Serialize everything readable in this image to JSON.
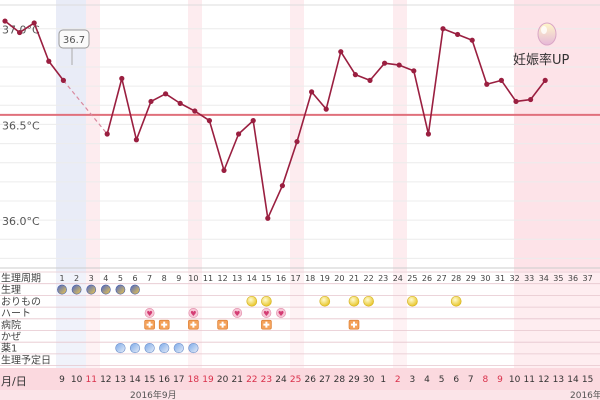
{
  "chart_data": {
    "type": "line",
    "y_ticks": [
      {
        "value": 37.0,
        "label": "37.0°C"
      },
      {
        "value": 36.5,
        "label": "36.5°C"
      },
      {
        "value": 36.0,
        "label": "36.0°C"
      }
    ],
    "ylim": [
      35.75,
      37.15
    ],
    "cover_line": 36.55,
    "tooltip": "36.7",
    "series_segments": [
      [
        [
          0,
          37.04
        ],
        [
          1,
          36.98
        ],
        [
          2,
          37.03
        ],
        [
          3,
          36.83
        ],
        [
          4,
          36.73
        ]
      ],
      [
        [
          7,
          36.45
        ],
        [
          8,
          36.74
        ],
        [
          9,
          36.42
        ],
        [
          10,
          36.62
        ],
        [
          11,
          36.66
        ],
        [
          12,
          36.61
        ],
        [
          13,
          36.57
        ],
        [
          14,
          36.52
        ],
        [
          15,
          36.26
        ],
        [
          16,
          36.45
        ],
        [
          17,
          36.52
        ],
        [
          18,
          36.01
        ],
        [
          19,
          36.18
        ],
        [
          20,
          36.41
        ],
        [
          21,
          36.67
        ],
        [
          22,
          36.58
        ],
        [
          23,
          36.88
        ],
        [
          24,
          36.76
        ],
        [
          25,
          36.73
        ],
        [
          26,
          36.82
        ],
        [
          27,
          36.81
        ],
        [
          28,
          36.78
        ],
        [
          29,
          36.45
        ],
        [
          30,
          37.0
        ],
        [
          31,
          36.97
        ],
        [
          32,
          36.94
        ],
        [
          33,
          36.71
        ],
        [
          34,
          36.73
        ],
        [
          35,
          36.62
        ],
        [
          36,
          36.63
        ],
        [
          37,
          36.73
        ]
      ]
    ],
    "interpolated_gap": [
      [
        4,
        36.73
      ],
      [
        7,
        36.45
      ]
    ],
    "badge": {
      "icon": "egg-icon",
      "label": "妊娠率UP"
    }
  },
  "rows": {
    "labels": [
      "生理周期",
      "生理",
      "おりもの",
      "ハート",
      "病院",
      "かぜ",
      "薬1",
      "生理予定日"
    ],
    "cycle_days": [
      "1",
      "2",
      "3",
      "4",
      "5",
      "6",
      "7",
      "8",
      "9",
      "10",
      "11",
      "12",
      "13",
      "14",
      "15",
      "16",
      "17",
      "18",
      "19",
      "20",
      "21",
      "22",
      "23",
      "24",
      "25",
      "26",
      "27",
      "28",
      "29",
      "30",
      "31",
      "32",
      "33",
      "34",
      "35",
      "36",
      "37"
    ],
    "period_cols": [
      0,
      1,
      2,
      3,
      4,
      5
    ],
    "discharge_cols": [
      13,
      14,
      18,
      20,
      21,
      24,
      27
    ],
    "heart_cols": [
      6,
      9,
      12,
      14,
      15
    ],
    "hospital_cols": [
      6,
      7,
      9,
      11,
      14,
      20
    ],
    "medicine_cols": [
      4,
      5,
      6,
      7,
      8,
      9
    ]
  },
  "date_row": {
    "corner_label": "月/日",
    "dates": [
      "9",
      "10",
      "11",
      "12",
      "13",
      "14",
      "15",
      "16",
      "17",
      "18",
      "19",
      "20",
      "21",
      "22",
      "23",
      "24",
      "25",
      "26",
      "27",
      "28",
      "29",
      "30",
      "1",
      "2",
      "3",
      "4",
      "5",
      "6",
      "7",
      "8",
      "9",
      "10",
      "11",
      "12",
      "13",
      "14",
      "15"
    ],
    "red_cols": [
      2,
      9,
      10,
      13,
      14,
      16,
      23,
      29,
      30
    ],
    "month_label": "2016年9月",
    "month_label_right": "2016年"
  },
  "colors": {
    "line": "#9a1f40",
    "cover_line": "#e0707c",
    "pink_band": "#fde6ea",
    "date_row_bg": "#fbd9df",
    "red_text": "#d9304a"
  }
}
